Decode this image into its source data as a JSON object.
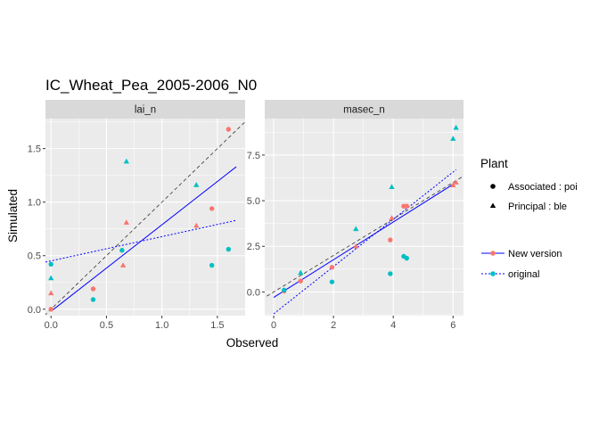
{
  "chart_data": {
    "type": "scatter",
    "title": "IC_Wheat_Pea_2005-2006_N0",
    "xlabel": "Observed",
    "ylabel": "Simulated",
    "colors": {
      "associated": "#F8766D",
      "principal": "#00BFC4",
      "new_version_line": "#0000FF",
      "original_line": "#0000FF",
      "identity_line": "#333333",
      "panel_bg": "#EBEBEB",
      "strip_bg": "#D9D9D9"
    },
    "legend": {
      "plant_title": "Plant",
      "plant_items": [
        {
          "label": "Associated : poi",
          "shape": "circle"
        },
        {
          "label": "Principal : ble",
          "shape": "triangle"
        }
      ],
      "version_items": [
        {
          "label": "New version",
          "linetype": "solid",
          "point_color": "#F8766D"
        },
        {
          "label": "original",
          "linetype": "dotted",
          "point_color": "#00BFC4"
        }
      ],
      "position": "right"
    },
    "panels": [
      {
        "strip": "lai_n",
        "xlim": [
          -0.05,
          1.75
        ],
        "ylim": [
          -0.06,
          1.78
        ],
        "x_ticks": [
          0.0,
          0.5,
          1.0,
          1.5
        ],
        "x_tick_labels": [
          "0.0",
          "0.5",
          "1.0",
          "1.5"
        ],
        "y_ticks": [
          0.0,
          0.5,
          1.0,
          1.5
        ],
        "y_tick_labels": [
          "0.0",
          "0.5",
          "1.0",
          "1.5"
        ],
        "points": [
          {
            "x": 0.0,
            "y": 0.0,
            "plant": "Associated",
            "version": "New version"
          },
          {
            "x": 0.0,
            "y": 0.15,
            "plant": "Principal",
            "version": "New version"
          },
          {
            "x": 0.38,
            "y": 0.19,
            "plant": "Associated",
            "version": "New version"
          },
          {
            "x": 0.65,
            "y": 0.41,
            "plant": "Principal",
            "version": "New version"
          },
          {
            "x": 0.68,
            "y": 0.81,
            "plant": "Principal",
            "version": "New version"
          },
          {
            "x": 1.31,
            "y": 0.78,
            "plant": "Principal",
            "version": "New version"
          },
          {
            "x": 1.45,
            "y": 0.94,
            "plant": "Associated",
            "version": "New version"
          },
          {
            "x": 1.6,
            "y": 1.68,
            "plant": "Associated",
            "version": "New version"
          },
          {
            "x": 0.0,
            "y": 0.42,
            "plant": "Associated",
            "version": "original"
          },
          {
            "x": 0.0,
            "y": 0.29,
            "plant": "Principal",
            "version": "original"
          },
          {
            "x": 0.38,
            "y": 0.09,
            "plant": "Associated",
            "version": "original"
          },
          {
            "x": 0.64,
            "y": 0.55,
            "plant": "Associated",
            "version": "original"
          },
          {
            "x": 0.68,
            "y": 1.38,
            "plant": "Principal",
            "version": "original"
          },
          {
            "x": 1.31,
            "y": 1.16,
            "plant": "Principal",
            "version": "original"
          },
          {
            "x": 1.45,
            "y": 0.41,
            "plant": "Associated",
            "version": "original"
          },
          {
            "x": 1.6,
            "y": 0.56,
            "plant": "Associated",
            "version": "original"
          }
        ],
        "fit_new_version": {
          "x": [
            0.0,
            1.67
          ],
          "y": [
            -0.02,
            1.33
          ]
        },
        "fit_original": {
          "x": [
            -0.05,
            1.67
          ],
          "y": [
            0.44,
            0.83
          ]
        }
      },
      {
        "strip": "masec_n",
        "xlim": [
          -0.3,
          6.35
        ],
        "ylim": [
          -1.3,
          9.5
        ],
        "x_ticks": [
          0,
          2,
          4,
          6
        ],
        "x_tick_labels": [
          "0",
          "2",
          "4",
          "6"
        ],
        "y_ticks": [
          0.0,
          2.5,
          5.0,
          7.5
        ],
        "y_tick_labels": [
          "0.0",
          "2.5",
          "5.0",
          "7.5"
        ],
        "points": [
          {
            "x": 0.35,
            "y": 0.05,
            "plant": "Associated",
            "version": "New version"
          },
          {
            "x": 0.9,
            "y": 0.6,
            "plant": "Associated",
            "version": "New version"
          },
          {
            "x": 1.95,
            "y": 1.35,
            "plant": "Associated",
            "version": "New version"
          },
          {
            "x": 2.75,
            "y": 2.5,
            "plant": "Principal",
            "version": "New version"
          },
          {
            "x": 3.9,
            "y": 2.85,
            "plant": "Associated",
            "version": "New version"
          },
          {
            "x": 3.95,
            "y": 4.05,
            "plant": "Principal",
            "version": "New version"
          },
          {
            "x": 4.35,
            "y": 4.7,
            "plant": "Associated",
            "version": "New version"
          },
          {
            "x": 4.45,
            "y": 4.7,
            "plant": "Associated",
            "version": "New version"
          },
          {
            "x": 6.0,
            "y": 5.85,
            "plant": "Principal",
            "version": "New version"
          },
          {
            "x": 6.1,
            "y": 6.0,
            "plant": "Principal",
            "version": "New version"
          },
          {
            "x": 0.35,
            "y": 0.1,
            "plant": "Associated",
            "version": "original"
          },
          {
            "x": 0.9,
            "y": 1.05,
            "plant": "Principal",
            "version": "original"
          },
          {
            "x": 1.95,
            "y": 0.55,
            "plant": "Associated",
            "version": "original"
          },
          {
            "x": 2.75,
            "y": 3.45,
            "plant": "Principal",
            "version": "original"
          },
          {
            "x": 3.9,
            "y": 1.0,
            "plant": "Associated",
            "version": "original"
          },
          {
            "x": 3.95,
            "y": 5.75,
            "plant": "Principal",
            "version": "original"
          },
          {
            "x": 4.35,
            "y": 1.95,
            "plant": "Associated",
            "version": "original"
          },
          {
            "x": 4.45,
            "y": 1.85,
            "plant": "Associated",
            "version": "original"
          },
          {
            "x": 6.0,
            "y": 8.4,
            "plant": "Principal",
            "version": "original"
          },
          {
            "x": 6.1,
            "y": 9.0,
            "plant": "Principal",
            "version": "original"
          }
        ],
        "fit_new_version": {
          "x": [
            0.0,
            6.1
          ],
          "y": [
            -0.3,
            6.0
          ]
        },
        "fit_original": {
          "x": [
            0.0,
            6.1
          ],
          "y": [
            -1.2,
            6.7
          ]
        }
      }
    ]
  }
}
